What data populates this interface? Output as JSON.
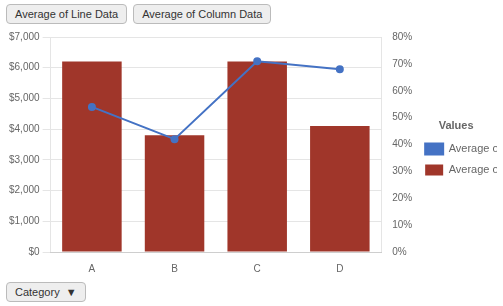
{
  "chart_data": {
    "type": "bar",
    "categories": [
      "A",
      "B",
      "C",
      "D"
    ],
    "series": [
      {
        "name": "Average of Column Data",
        "type": "bar",
        "color": "#A0362A",
        "values": [
          6200,
          3800,
          6200,
          4100
        ]
      },
      {
        "name": "Average of Line Data",
        "type": "line",
        "color": "#4472C4",
        "marker": "circle",
        "axis": "y2",
        "values": [
          0.54,
          0.42,
          0.71,
          0.68
        ]
      }
    ],
    "ylim": [
      0,
      7000
    ],
    "yticks": [
      {
        "value": 0,
        "label": "$0"
      },
      {
        "value": 1000,
        "label": "$1,000"
      },
      {
        "value": 2000,
        "label": "$2,000"
      },
      {
        "value": 3000,
        "label": "$3,000"
      },
      {
        "value": 4000,
        "label": "$4,000"
      },
      {
        "value": 5000,
        "label": "$5,000"
      },
      {
        "value": 6000,
        "label": "$6,000"
      },
      {
        "value": 7000,
        "label": "$7,000"
      }
    ],
    "y2lim": [
      0,
      0.8
    ],
    "y2ticks": [
      {
        "value": 0.0,
        "label": "0%"
      },
      {
        "value": 0.1,
        "label": "10%"
      },
      {
        "value": 0.2,
        "label": "20%"
      },
      {
        "value": 0.3,
        "label": "30%"
      },
      {
        "value": 0.4,
        "label": "40%"
      },
      {
        "value": 0.5,
        "label": "50%"
      },
      {
        "value": 0.6,
        "label": "60%"
      },
      {
        "value": 0.7,
        "label": "70%"
      },
      {
        "value": 0.8,
        "label": "80%"
      }
    ],
    "grid": true,
    "legend": "right",
    "legend_title": "Values",
    "annotations": [
      "Average of Line Data",
      "Average of Column Data",
      "Category  ▼"
    ]
  }
}
